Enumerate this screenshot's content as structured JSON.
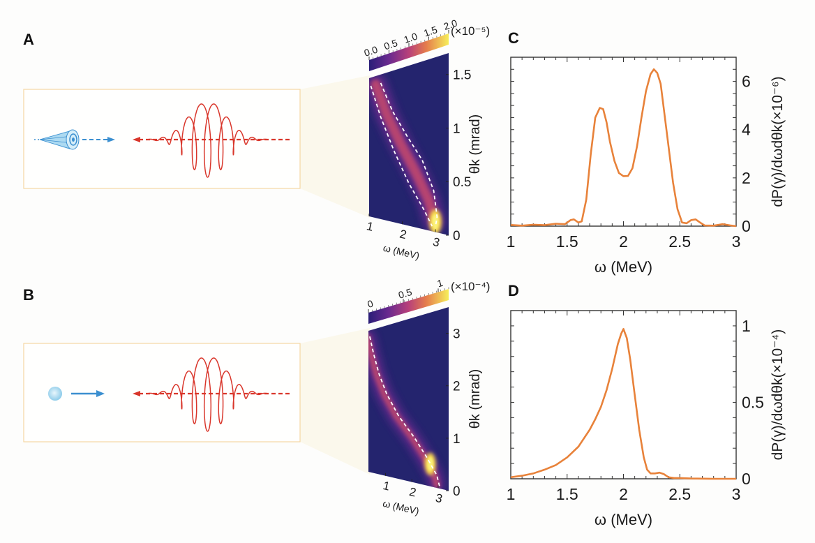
{
  "panels": {
    "A": {
      "label": "A"
    },
    "B": {
      "label": "B"
    },
    "C": {
      "label": "C"
    },
    "D": {
      "label": "D"
    }
  },
  "colors": {
    "laser": "#d9362b",
    "electron": "#3b8fd0",
    "electron_light": "#9fd3ee",
    "inset_border": "#f5d7a4",
    "projection": "#fbf8ec",
    "heatmap_bg": "#24246e",
    "spectrum_line": "#e8823a"
  },
  "chart_data": [
    {
      "id": "A-heatmap",
      "type": "heatmap",
      "title": "",
      "xlabel": "ω (MeV)",
      "ylabel": "θk (mrad)",
      "xlim": [
        1,
        3.4
      ],
      "ylim": [
        0,
        1.7
      ],
      "x_ticks": [
        "1",
        "2",
        "3"
      ],
      "x_tick_values": [
        1,
        2,
        3
      ],
      "y_ticks": [
        "0",
        "0.5",
        "1",
        "1.5"
      ],
      "y_tick_values": [
        0,
        0.5,
        1,
        1.5
      ],
      "colorbar": {
        "ticks": [
          "0.0",
          "0.5",
          "1.0",
          "1.5",
          "2.0"
        ],
        "tick_values": [
          0,
          0.5,
          1.0,
          1.5,
          2.0
        ],
        "scale_label": "(×10⁻⁵)",
        "range": [
          0,
          2.0
        ],
        "colormap": "plasma-like"
      },
      "ridges": [
        {
          "name": "dashed-boundary-left",
          "points": [
            [
              1.05,
              1.6
            ],
            [
              1.35,
              1.2
            ],
            [
              1.75,
              0.8
            ],
            [
              2.2,
              0.45
            ],
            [
              2.65,
              0.2
            ],
            [
              2.9,
              0.05
            ]
          ]
        },
        {
          "name": "dashed-boundary-right",
          "points": [
            [
              1.35,
              1.6
            ],
            [
              1.7,
              1.25
            ],
            [
              2.15,
              0.95
            ],
            [
              2.6,
              0.7
            ],
            [
              2.95,
              0.4
            ],
            [
              3.05,
              0.15
            ],
            [
              3.0,
              0.05
            ]
          ]
        }
      ],
      "peak": {
        "x": 3.0,
        "y": 0.1,
        "value": 2.0
      }
    },
    {
      "id": "B-heatmap",
      "type": "heatmap",
      "title": "",
      "xlabel": "ω (MeV)",
      "ylabel": "θk (mrad)",
      "xlim": [
        0.35,
        3.4
      ],
      "ylim": [
        0,
        3.5
      ],
      "x_ticks": [
        "1",
        "2",
        "3"
      ],
      "x_tick_values": [
        1,
        2,
        3
      ],
      "y_ticks": [
        "0",
        "1",
        "2",
        "3"
      ],
      "y_tick_values": [
        0,
        1,
        2,
        3
      ],
      "colorbar": {
        "ticks": [
          "0",
          "0.5",
          "1"
        ],
        "tick_values": [
          0,
          0.5,
          1.0
        ],
        "scale_label": "(×10⁻⁴)",
        "range": [
          0,
          1.15
        ],
        "colormap": "plasma-like"
      },
      "ridges": [
        {
          "name": "dashed-ridge",
          "points": [
            [
              0.4,
              3.35
            ],
            [
              0.55,
              2.9
            ],
            [
              0.75,
              2.4
            ],
            [
              1.05,
              1.9
            ],
            [
              1.5,
              1.4
            ],
            [
              2.1,
              0.95
            ],
            [
              2.6,
              0.55
            ],
            [
              2.95,
              0.25
            ],
            [
              3.05,
              0.05
            ]
          ]
        }
      ],
      "peak": {
        "x": 2.7,
        "y": 0.45,
        "value": 1.0
      }
    },
    {
      "id": "C-spectrum",
      "type": "line",
      "title": "",
      "xlabel": "ω (MeV)",
      "ylabel": "dP(γ)/dωdθk(×10⁻⁶)",
      "xlim": [
        1,
        3
      ],
      "ylim": [
        0,
        7
      ],
      "x_ticks": [
        "1",
        "1.5",
        "2",
        "2.5",
        "3"
      ],
      "x_tick_values": [
        1,
        1.5,
        2,
        2.5,
        3
      ],
      "y_ticks": [
        "0",
        "2",
        "4",
        "6"
      ],
      "y_tick_values": [
        0,
        2,
        4,
        6
      ],
      "grid": false,
      "series": [
        {
          "name": "spectrum",
          "x": [
            1.0,
            1.1,
            1.2,
            1.3,
            1.4,
            1.48,
            1.53,
            1.56,
            1.6,
            1.63,
            1.67,
            1.71,
            1.75,
            1.79,
            1.82,
            1.85,
            1.88,
            1.92,
            1.96,
            2.0,
            2.04,
            2.08,
            2.12,
            2.16,
            2.2,
            2.24,
            2.27,
            2.3,
            2.33,
            2.36,
            2.4,
            2.44,
            2.48,
            2.52,
            2.56,
            2.6,
            2.64,
            2.68,
            2.72,
            2.8,
            2.88,
            2.95,
            3.0
          ],
          "y": [
            0.05,
            0.02,
            0.06,
            0.04,
            0.1,
            0.08,
            0.25,
            0.28,
            0.15,
            0.2,
            1.1,
            3.0,
            4.5,
            4.9,
            4.85,
            4.3,
            3.5,
            2.7,
            2.2,
            2.07,
            2.08,
            2.4,
            3.3,
            4.5,
            5.6,
            6.3,
            6.5,
            6.35,
            5.9,
            4.8,
            3.3,
            1.8,
            0.7,
            0.15,
            0.12,
            0.25,
            0.28,
            0.15,
            0.03,
            0.02,
            0.08,
            0.03,
            0.0
          ]
        }
      ]
    },
    {
      "id": "D-spectrum",
      "type": "line",
      "title": "",
      "xlabel": "ω (MeV)",
      "ylabel": "dP(γ)/dωdθk(×10⁻⁴)",
      "xlim": [
        1,
        3
      ],
      "ylim": [
        0,
        1.1
      ],
      "x_ticks": [
        "1",
        "1.5",
        "2",
        "2.5",
        "3"
      ],
      "x_tick_values": [
        1,
        1.5,
        2,
        2.5,
        3
      ],
      "y_ticks": [
        "0",
        "0.5",
        "1"
      ],
      "y_tick_values": [
        0,
        0.5,
        1
      ],
      "grid": false,
      "series": [
        {
          "name": "spectrum",
          "x": [
            1.0,
            1.1,
            1.2,
            1.3,
            1.4,
            1.5,
            1.6,
            1.7,
            1.75,
            1.8,
            1.85,
            1.9,
            1.95,
            1.98,
            2.0,
            2.03,
            2.06,
            2.1,
            2.14,
            2.18,
            2.21,
            2.24,
            2.28,
            2.32,
            2.36,
            2.4,
            2.45,
            2.5,
            2.6,
            2.8,
            3.0
          ],
          "y": [
            0.01,
            0.02,
            0.035,
            0.06,
            0.09,
            0.14,
            0.21,
            0.32,
            0.39,
            0.47,
            0.58,
            0.72,
            0.88,
            0.95,
            0.98,
            0.92,
            0.78,
            0.55,
            0.32,
            0.14,
            0.06,
            0.035,
            0.035,
            0.04,
            0.03,
            0.01,
            0.005,
            0.005,
            0.002,
            0.0,
            0.0
          ]
        }
      ]
    }
  ]
}
